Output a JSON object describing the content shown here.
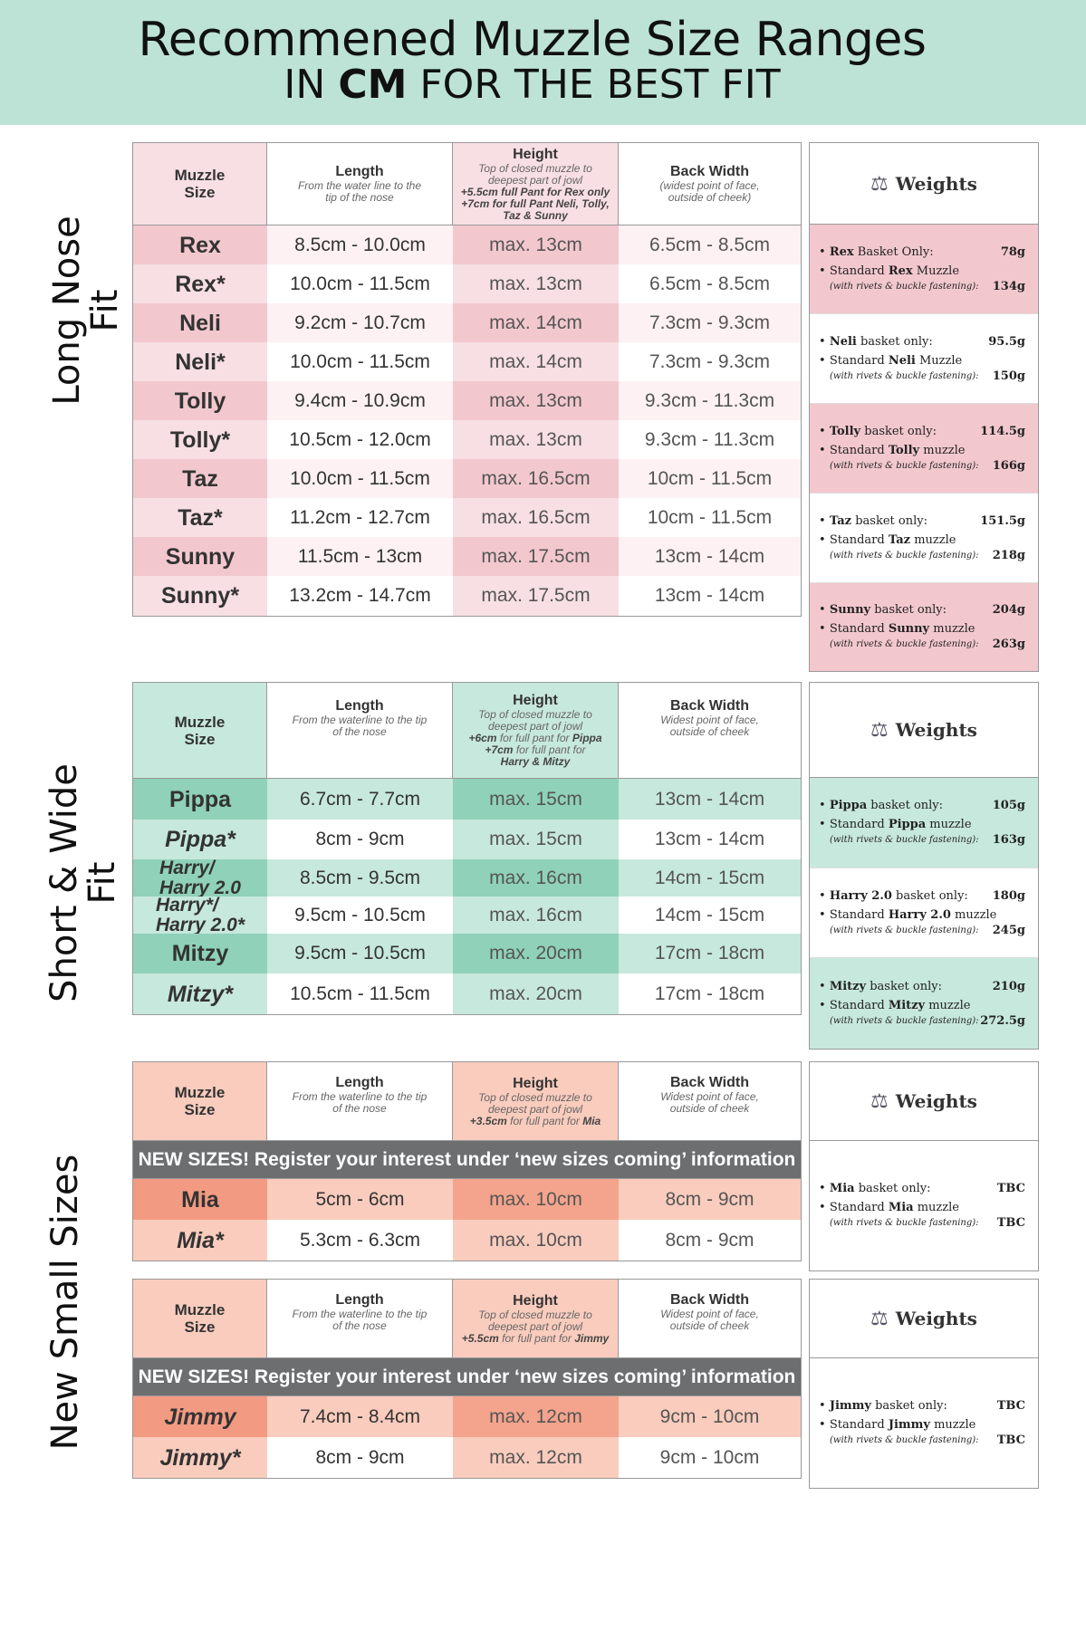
{
  "header": {
    "title": "Recommened Muzzle Size Ranges",
    "subtitle_prefix": "IN ",
    "subtitle_bold": "CM",
    "subtitle_suffix": " FOR THE BEST FIT"
  },
  "labels": {
    "muzzle_size": "Muzzle Size",
    "length": "Length",
    "height": "Height",
    "back_width": "Back Width",
    "weights": "Weights"
  },
  "colors": {
    "pink_light": "#f7dfe3",
    "pink_mid": "#f2c8ce",
    "green_light": "#c7e8dc",
    "green_mid": "#8fd1b9",
    "peach_light": "#f9ccbd",
    "peach_mid": "#f4a48c",
    "peach_dark": "#f39a82",
    "banner": "#6d6e70",
    "header_bg": "#bde3d7"
  },
  "sections": [
    {
      "label_line1": "Long Nose",
      "label_line2": "Fit",
      "length_sub": "From the water line to the tip of the nose",
      "height_sub": "Top of closed muzzle to deepest part of jowl",
      "height_bold": "+5.5cm full Pant for Rex only +7cm for full Pant Neli, Tolly, Taz & Sunny",
      "width_sub": "(widest point of face, outside of cheek)",
      "rows": [
        {
          "name": "Rex",
          "length": "8.5cm - 10.0cm",
          "height": "max. 13cm",
          "width": "6.5cm - 8.5cm"
        },
        {
          "name": "Rex*",
          "length": "10.0cm - 11.5cm",
          "height": "max. 13cm",
          "width": "6.5cm - 8.5cm"
        },
        {
          "name": "Neli",
          "length": "9.2cm - 10.7cm",
          "height": "max. 14cm",
          "width": "7.3cm - 9.3cm"
        },
        {
          "name": "Neli*",
          "length": "10.0cm - 11.5cm",
          "height": "max. 14cm",
          "width": "7.3cm - 9.3cm"
        },
        {
          "name": "Tolly",
          "length": "9.4cm - 10.9cm",
          "height": "max. 13cm",
          "width": "9.3cm - 11.3cm"
        },
        {
          "name": "Tolly*",
          "length": "10.5cm - 12.0cm",
          "height": "max. 13cm",
          "width": "9.3cm - 11.3cm"
        },
        {
          "name": "Taz",
          "length": "10.0cm - 11.5cm",
          "height": "max. 16.5cm",
          "width": "10cm - 11.5cm"
        },
        {
          "name": "Taz*",
          "length": "11.2cm - 12.7cm",
          "height": "max. 16.5cm",
          "width": "10cm - 11.5cm"
        },
        {
          "name": "Sunny",
          "length": "11.5cm - 13cm",
          "height": "max. 17.5cm",
          "width": "13cm - 14cm"
        },
        {
          "name": "Sunny*",
          "length": "13.2cm - 14.7cm",
          "height": "max. 17.5cm",
          "width": "13cm - 14cm"
        }
      ],
      "weights": [
        {
          "basket_name": "Rex",
          "basket_suffix": " Basket Only:",
          "basket_weight": "78g",
          "std_prefix": "Standard ",
          "std_name": "Rex",
          "std_suffix": " Muzzle",
          "note": "(with rivets & buckle fastening):",
          "std_weight": "134g"
        },
        {
          "basket_name": "Neli",
          "basket_suffix": " basket only:",
          "basket_weight": "95.5g",
          "std_prefix": "Standard ",
          "std_name": "Neli",
          "std_suffix": " Muzzle",
          "note": "(with rivets & buckle fastening):",
          "std_weight": "150g"
        },
        {
          "basket_name": "Tolly",
          "basket_suffix": " basket only:",
          "basket_weight": "114.5g",
          "std_prefix": "Standard ",
          "std_name": "Tolly",
          "std_suffix": " muzzle",
          "note": "(with rivets & buckle fastening):",
          "std_weight": "166g"
        },
        {
          "basket_name": "Taz",
          "basket_suffix": " basket only:",
          "basket_weight": "151.5g",
          "std_prefix": "Standard ",
          "std_name": "Taz",
          "std_suffix": " muzzle",
          "note": "(with rivets & buckle fastening):",
          "std_weight": "218g"
        },
        {
          "basket_name": "Sunny",
          "basket_suffix": " basket only:",
          "basket_weight": "204g",
          "std_prefix": "Standard ",
          "std_name": "Sunny",
          "std_suffix": " muzzle",
          "note": "(with rivets & buckle fastening):",
          "std_weight": "263g"
        }
      ]
    },
    {
      "label_line1": "Short & Wide",
      "label_line2": "Fit",
      "length_sub": "From the waterline to the tip of the nose",
      "height_sub": "Top of closed muzzle to deepest part of jowl",
      "height_bold1": "+6cm",
      "height_mid1": " for full pant for ",
      "height_bold2": "Pippa",
      "height_bold3": "+7cm",
      "height_mid2": " for full pant for ",
      "height_bold4": "Harry & Mitzy",
      "width_sub": "Widest point of face, outside of cheek",
      "rows": [
        {
          "name": "Pippa",
          "length": "6.7cm - 7.7cm",
          "height": "max. 15cm",
          "width": "13cm - 14cm"
        },
        {
          "name": "Pippa*",
          "length": "8cm - 9cm",
          "height": "max. 15cm",
          "width": "13cm - 14cm"
        },
        {
          "name_l1": "Harry/",
          "name_l2": "Harry 2.0",
          "length": "8.5cm - 9.5cm",
          "height": "max. 16cm",
          "width": "14cm - 15cm"
        },
        {
          "name_l1": "Harry*/",
          "name_l2": "Harry 2.0*",
          "length": "9.5cm - 10.5cm",
          "height": "max. 16cm",
          "width": "14cm - 15cm"
        },
        {
          "name": "Mitzy",
          "length": "9.5cm - 10.5cm",
          "height": "max. 20cm",
          "width": "17cm - 18cm"
        },
        {
          "name": "Mitzy*",
          "length": "10.5cm - 11.5cm",
          "height": "max. 20cm",
          "width": "17cm - 18cm"
        }
      ],
      "weights": [
        {
          "basket_name": "Pippa",
          "basket_suffix": " basket only:",
          "basket_weight": "105g",
          "std_prefix": "Standard ",
          "std_name": "Pippa",
          "std_suffix": " muzzle",
          "note": "(with rivets & buckle fastening):",
          "std_weight": "163g"
        },
        {
          "basket_name": "Harry 2.0",
          "basket_suffix": " basket only:",
          "basket_weight": "180g",
          "std_prefix": "Standard ",
          "std_name": "Harry 2.0",
          "std_suffix": " muzzle",
          "note": "(with rivets & buckle fastening):",
          "std_weight": "245g"
        },
        {
          "basket_name": "Mitzy",
          "basket_suffix": " basket only:",
          "basket_weight": "210g",
          "std_prefix": "Standard ",
          "std_name": "Mitzy",
          "std_suffix": " muzzle",
          "note": "(with rivets & buckle fastening):",
          "std_weight": "272.5g"
        }
      ]
    },
    {
      "label_line1": "New Small Sizes",
      "banner": "NEW SIZES! Register your interest under ‘new sizes coming’ information",
      "length_sub": "From the waterline to the tip of the nose",
      "height_sub": "Top of closed muzzle to deepest part of jowl",
      "mia_height_bold": "+3.5cm",
      "mia_height_mid": " for full pant for ",
      "mia_height_name": "Mia",
      "jimmy_height_bold": "+5.5cm",
      "jimmy_height_mid": " for full pant for ",
      "jimmy_height_name": "Jimmy",
      "width_sub": "Widest point of face, outside of cheek",
      "mia_rows": [
        {
          "name": "Mia",
          "length": "5cm - 6cm",
          "height": "max. 10cm",
          "width": "8cm - 9cm"
        },
        {
          "name": "Mia*",
          "length": "5.3cm - 6.3cm",
          "height": "max. 10cm",
          "width": "8cm - 9cm"
        }
      ],
      "jimmy_rows": [
        {
          "name": "Jimmy",
          "length": "7.4cm - 8.4cm",
          "height": "max. 12cm",
          "width": "9cm - 10cm"
        },
        {
          "name": "Jimmy*",
          "length": "8cm - 9cm",
          "height": "max. 12cm",
          "width": "9cm - 10cm"
        }
      ],
      "weights": [
        {
          "basket_name": "Mia",
          "basket_suffix": " basket only:",
          "basket_weight": "TBC",
          "std_prefix": "Standard ",
          "std_name": "Mia",
          "std_suffix": " muzzle",
          "note": "(with rivets & buckle fastening):",
          "std_weight": "TBC"
        },
        {
          "basket_name": "Jimmy",
          "basket_suffix": " basket only:",
          "basket_weight": "TBC",
          "std_prefix": "Standard ",
          "std_name": "Jimmy",
          "std_suffix": " muzzle",
          "note": "(with rivets & buckle fastening):",
          "std_weight": "TBC"
        }
      ]
    }
  ]
}
